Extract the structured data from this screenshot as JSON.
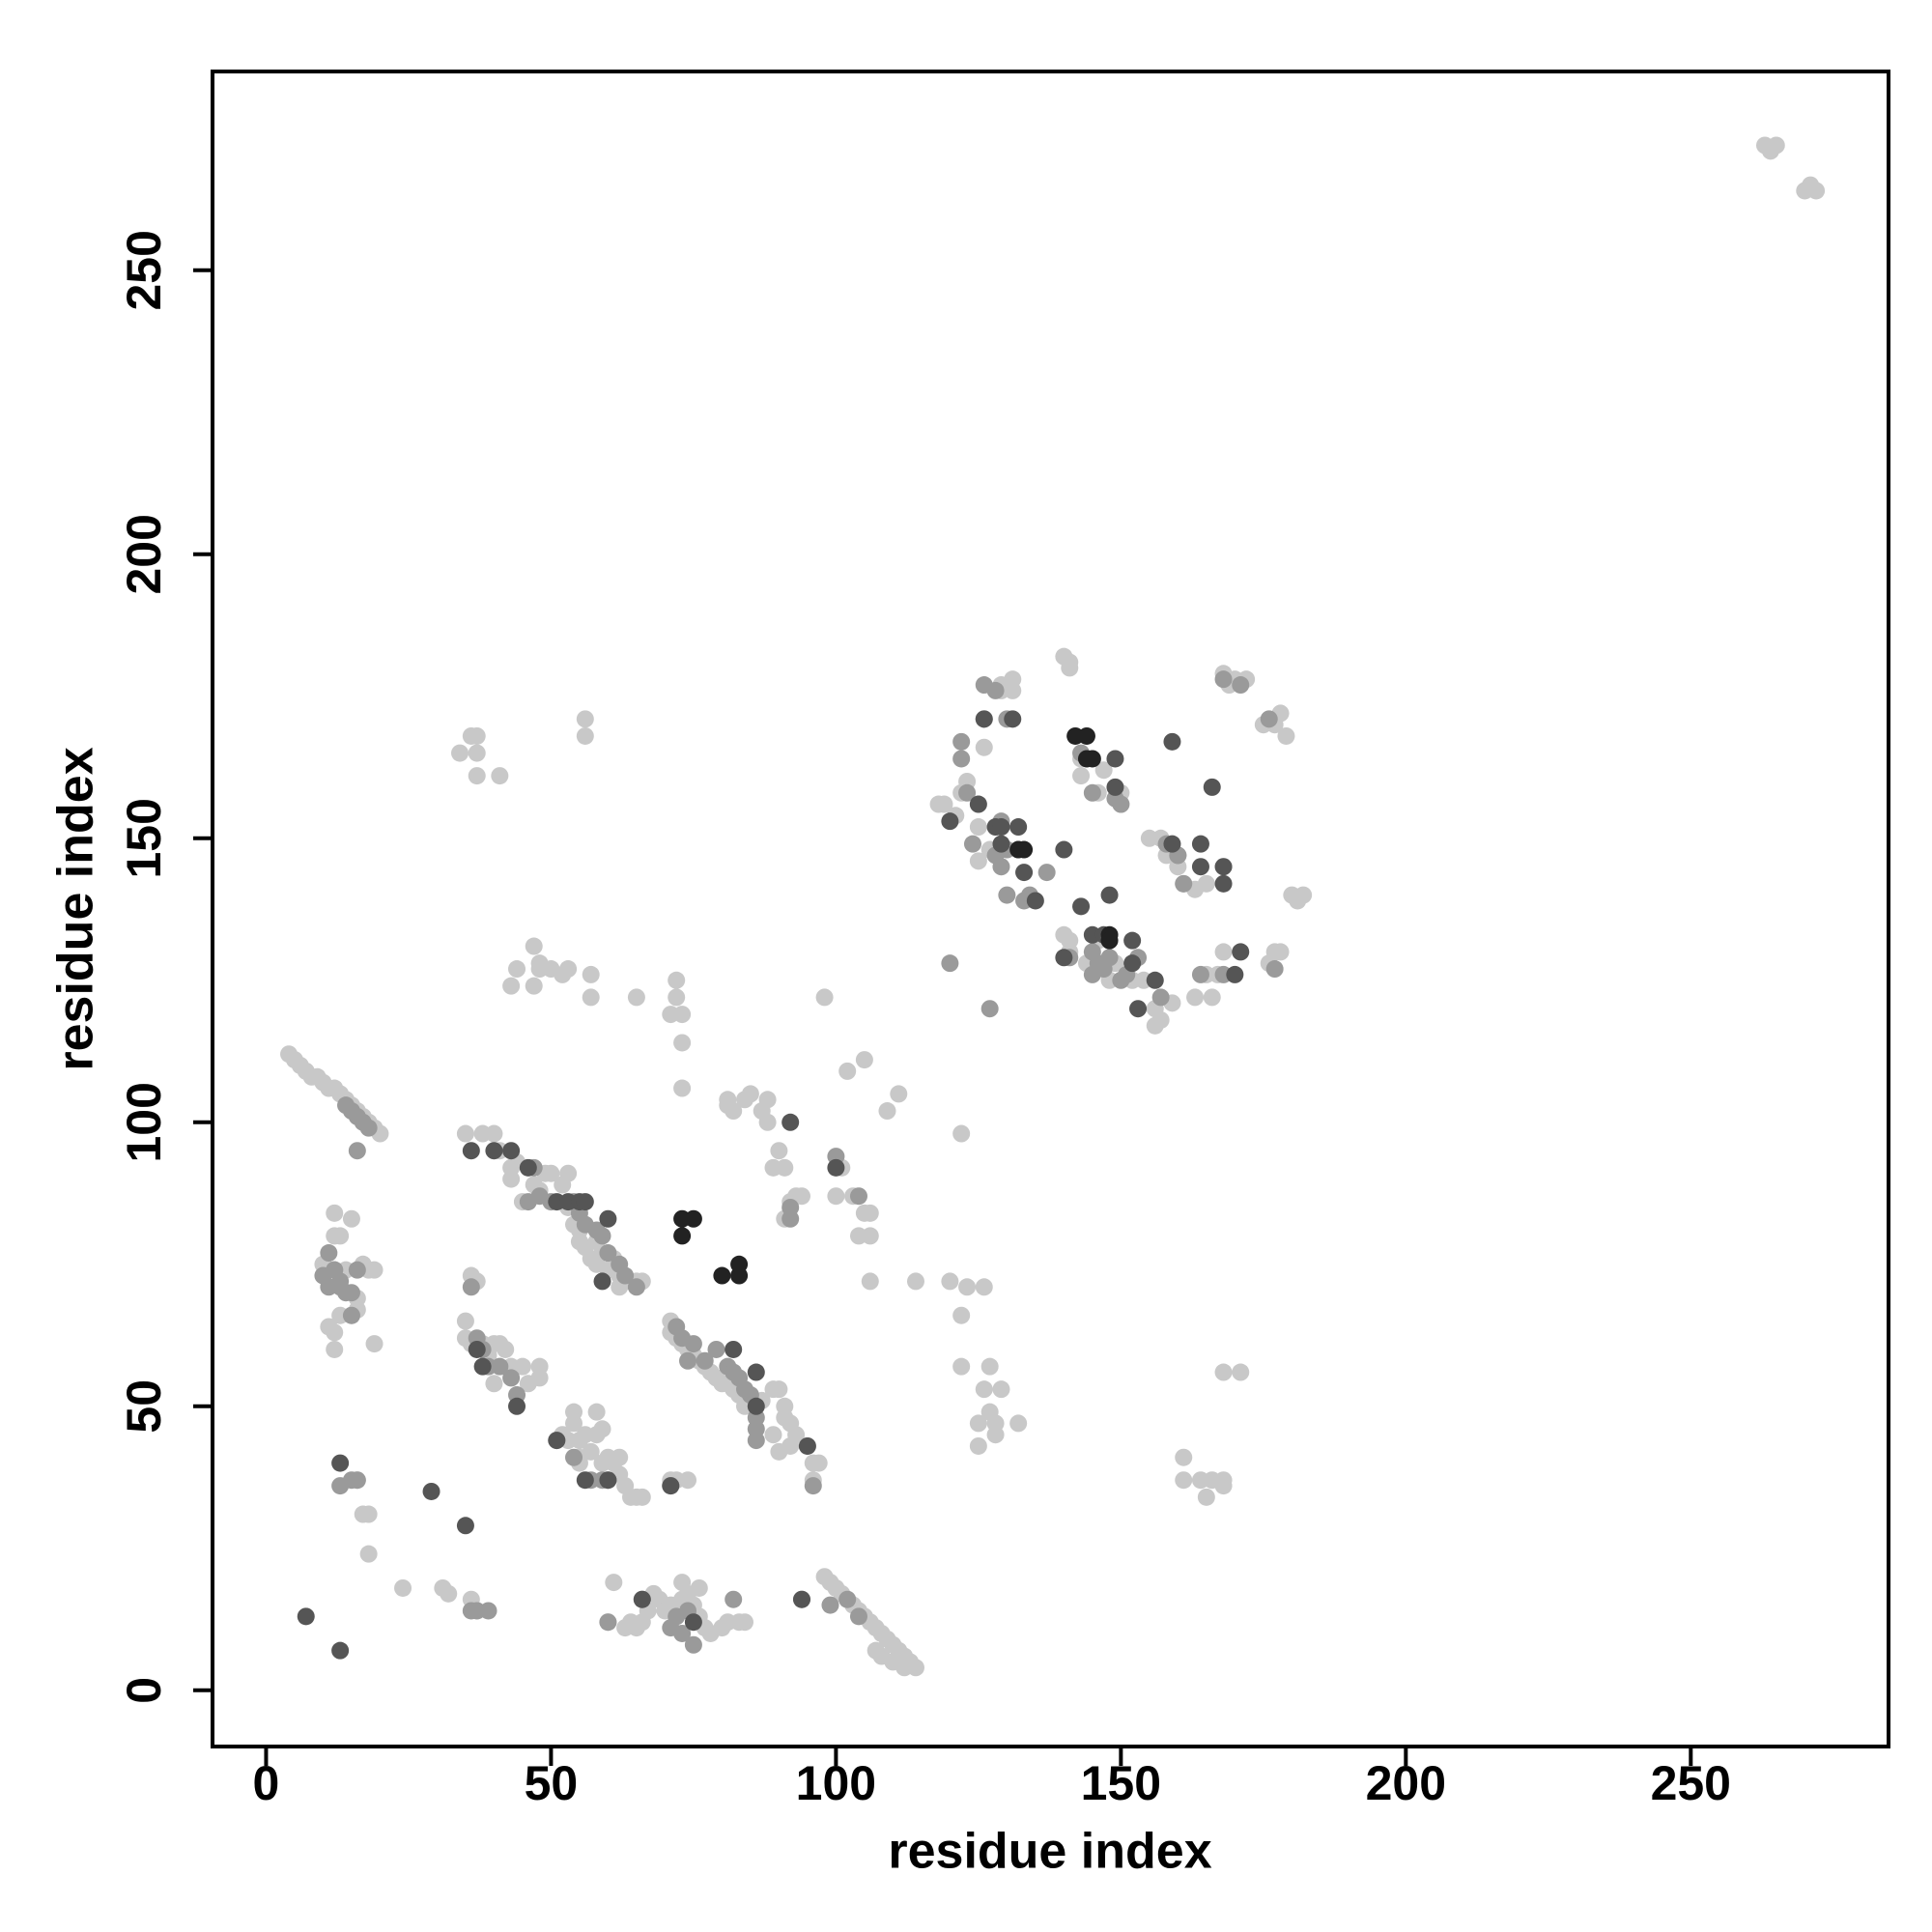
{
  "chart_data": {
    "type": "scatter",
    "xlabel": "residue index",
    "ylabel": "residue index",
    "xlim": [
      -9.4,
      284.7
    ],
    "ylim": [
      -9.9,
      285
    ],
    "xticks": [
      0,
      50,
      100,
      150,
      200,
      250
    ],
    "yticks": [
      0,
      50,
      100,
      150,
      200,
      250
    ],
    "series": [
      {
        "color": "#c8c8c8",
        "x": [
          4,
          5,
          6,
          7,
          8,
          9,
          10,
          11,
          12,
          13,
          14,
          15,
          16,
          17,
          18,
          19,
          20,
          263,
          264,
          265,
          271,
          272,
          270,
          98,
          99,
          100,
          101,
          102,
          103,
          104,
          105,
          106,
          107,
          108,
          109,
          110,
          111,
          112,
          113,
          114,
          107,
          108,
          110,
          112,
          140,
          141,
          141,
          121,
          118,
          119,
          122,
          123,
          125,
          125,
          127,
          126,
          129,
          129,
          131,
          131,
          143,
          143,
          146,
          147,
          150,
          150,
          155,
          157,
          158,
          160,
          161,
          163,
          165,
          168,
          176,
          177,
          178,
          180,
          181,
          182,
          177,
          178,
          179,
          175,
          168,
          169,
          172,
          170,
          141,
          141,
          140,
          144,
          146,
          148,
          149,
          152,
          154,
          156,
          156,
          157,
          159,
          163,
          165,
          166,
          167,
          168,
          168,
          171,
          161,
          161,
          164,
          165,
          166,
          168,
          168,
          120,
          123,
          126,
          122,
          122,
          125,
          125,
          126,
          127,
          127,
          129,
          128,
          128,
          132,
          114,
          106,
          111,
          109,
          105,
          102,
          103,
          104,
          105,
          106,
          106,
          101,
          100,
          98,
          122,
          94,
          93,
          92,
          91,
          89,
          90,
          91,
          88,
          88,
          87,
          85,
          84,
          82,
          81,
          81,
          72,
          72,
          73,
          71,
          73,
          73,
          65,
          57,
          57,
          53,
          52,
          47,
          48,
          47,
          48,
          50,
          43,
          44,
          34,
          36,
          37,
          37,
          37,
          41,
          56,
          56,
          35,
          38,
          40,
          41,
          43,
          44,
          43,
          45,
          47,
          48,
          49,
          50,
          52,
          53,
          53,
          54,
          55,
          55,
          56,
          57,
          58,
          58,
          59,
          61,
          61,
          62,
          63,
          64,
          65,
          66,
          62,
          60,
          71,
          71,
          72,
          73,
          74,
          75,
          76,
          77,
          78,
          79,
          80,
          81,
          82,
          83,
          84,
          89,
          90,
          91,
          91,
          92,
          93,
          95,
          96,
          97,
          92,
          89,
          90,
          87,
          96,
          35,
          35,
          36,
          38,
          39,
          40,
          41,
          42,
          43,
          45,
          46,
          48,
          48,
          40,
          52,
          53,
          54,
          54,
          55,
          55,
          56,
          57,
          58,
          58,
          59,
          59,
          60,
          61,
          62,
          62,
          63,
          64,
          65,
          66,
          61,
          60,
          63,
          64,
          65,
          66,
          67,
          68,
          69,
          70,
          71,
          72,
          73,
          73,
          74,
          75,
          76,
          76,
          77,
          78,
          80,
          81,
          83,
          84,
          71,
          72,
          74,
          55,
          31,
          32,
          24,
          18,
          17,
          16,
          18,
          19,
          15,
          12,
          12,
          13,
          10,
          14,
          17,
          18,
          19,
          16,
          12,
          12,
          11,
          13,
          15,
          16,
          36,
          37,
          36,
          37
        ],
        "y": [
          112,
          111,
          110,
          109,
          108,
          108,
          107,
          106,
          106,
          105,
          104,
          103,
          102,
          101,
          100,
          99,
          98,
          272,
          271,
          272,
          265,
          264,
          264,
          20,
          19,
          18,
          17,
          16,
          15,
          14,
          13,
          12,
          11,
          10,
          9,
          8,
          7,
          6,
          5,
          4,
          7,
          6,
          5,
          4,
          182,
          181,
          180,
          154,
          156,
          156,
          158,
          160,
          152,
          146,
          148,
          166,
          177,
          176,
          178,
          176,
          164,
          161,
          158,
          162,
          158,
          156,
          150,
          150,
          147,
          145,
          142,
          141,
          142,
          145,
          128,
          130,
          130,
          140,
          139,
          140,
          170,
          172,
          168,
          170,
          179,
          177,
          178,
          178,
          130,
          132,
          133,
          128,
          132,
          125,
          128,
          125,
          125,
          120,
          117,
          118,
          121,
          122,
          126,
          122,
          126,
          130,
          56,
          56,
          41,
          37,
          37,
          34,
          37,
          37,
          36,
          72,
          71,
          71,
          66,
          57,
          47,
          43,
          53,
          57,
          49,
          53,
          47,
          45,
          47,
          72,
          72,
          105,
          102,
          111,
          109,
          87,
          80,
          84,
          84,
          80,
          92,
          87,
          122,
          98,
          87,
          87,
          86,
          83,
          92,
          95,
          92,
          100,
          104,
          102,
          105,
          104,
          102,
          104,
          103,
          125,
          122,
          119,
          119,
          114,
          106,
          122,
          126,
          122,
          127,
          126,
          124,
          128,
          131,
          127,
          127,
          124,
          127,
          165,
          168,
          168,
          165,
          161,
          161,
          171,
          168,
          98,
          98,
          98,
          95,
          92,
          93,
          90,
          86,
          89,
          88,
          91,
          91,
          89,
          91,
          85,
          82,
          79,
          81,
          78,
          76,
          75,
          79,
          77,
          76,
          74,
          73,
          72,
          72,
          72,
          72,
          71,
          74,
          65,
          63,
          62,
          61,
          60,
          59,
          58,
          57,
          56,
          55,
          54,
          54,
          53,
          52,
          50,
          53,
          53,
          50,
          48,
          47,
          45,
          43,
          40,
          40,
          43,
          45,
          42,
          51,
          37,
          65,
          62,
          61,
          61,
          59,
          61,
          61,
          60,
          57,
          57,
          54,
          55,
          57,
          54,
          45,
          44,
          47,
          49,
          44,
          41,
          45,
          42,
          45,
          49,
          46,
          40,
          41,
          40,
          41,
          38,
          36,
          34,
          34,
          34,
          19,
          12,
          11,
          12,
          11,
          12,
          14,
          17,
          16,
          14,
          15,
          13,
          16,
          19,
          17,
          15,
          18,
          13,
          11,
          10,
          11,
          12,
          12,
          12,
          37,
          37,
          37,
          40,
          18,
          17,
          18,
          31,
          31,
          37,
          24,
          61,
          83,
          84,
          80,
          80,
          75,
          74,
          75,
          74,
          74,
          69,
          63,
          60,
          64,
          66,
          66,
          67,
          73,
          72,
          16,
          14
        ]
      },
      {
        "color": "#9a9a9a",
        "x": [
          15,
          16,
          17,
          18,
          14,
          16,
          12,
          10,
          11,
          13,
          14,
          15,
          16,
          11,
          13,
          13,
          15,
          12,
          36,
          37,
          38,
          39,
          41,
          43,
          44,
          46,
          47,
          48,
          50,
          54,
          55,
          56,
          58,
          59,
          60,
          62,
          63,
          65,
          72,
          73,
          74,
          75,
          77,
          79,
          81,
          82,
          83,
          84,
          85,
          86,
          86,
          86,
          92,
          92,
          96,
          104,
          100,
          51,
          54,
          57,
          60,
          71,
          60,
          59,
          39,
          37,
          36,
          66,
          71,
          72,
          73,
          74,
          75,
          82,
          94,
          99,
          102,
          104,
          120,
          127,
          124,
          126,
          128,
          129,
          130,
          129,
          130,
          132,
          133,
          134,
          137,
          141,
          145,
          145,
          146,
          147,
          144,
          145,
          148,
          150,
          151,
          153,
          157,
          158,
          160,
          161,
          168,
          171,
          176,
          177,
          160,
          122,
          123,
          128,
          130,
          143,
          149,
          164,
          168,
          122,
          126,
          150,
          16,
          15
        ],
        "y": [
          102,
          101,
          100,
          99,
          103,
          95,
          74,
          73,
          71,
          71,
          70,
          70,
          74,
          77,
          72,
          36,
          37,
          74,
          71,
          62,
          60,
          57,
          57,
          55,
          52,
          86,
          92,
          87,
          86,
          86,
          84,
          82,
          81,
          80,
          77,
          75,
          73,
          71,
          64,
          62,
          58,
          61,
          58,
          60,
          57,
          56,
          55,
          53,
          52,
          44,
          46,
          48,
          83,
          85,
          36,
          87,
          94,
          44,
          41,
          37,
          37,
          36,
          12,
          37,
          14,
          14,
          14,
          16,
          11,
          13,
          10,
          14,
          8,
          16,
          16,
          15,
          16,
          13,
          128,
          120,
          149,
          171,
          147,
          145,
          140,
          153,
          148,
          148,
          139,
          140,
          144,
          129,
          130,
          126,
          128,
          127,
          164,
          158,
          129,
          125,
          126,
          129,
          122,
          149,
          147,
          142,
          178,
          177,
          171,
          127,
          147,
          164,
          158,
          176,
          171,
          165,
          157,
          126,
          126,
          167,
          177,
          156,
          37,
          66
        ]
      },
      {
        "color": "#555555",
        "x": [
          7,
          13,
          13,
          29,
          35,
          36,
          37,
          38,
          40,
          43,
          44,
          46,
          51,
          51,
          53,
          55,
          56,
          60,
          66,
          71,
          75,
          82,
          86,
          86,
          92,
          94,
          95,
          100,
          120,
          125,
          126,
          128,
          129,
          129,
          131,
          132,
          133,
          135,
          140,
          143,
          145,
          148,
          149,
          149,
          152,
          153,
          156,
          159,
          159,
          164,
          164,
          166,
          168,
          168,
          170,
          171,
          152,
          147,
          140,
          56,
          60,
          59
        ],
        "y": [
          13,
          7,
          40,
          35,
          29,
          95,
          60,
          57,
          95,
          95,
          50,
          92,
          44,
          86,
          86,
          86,
          86,
          83,
          16,
          36,
          12,
          60,
          56,
          50,
          100,
          16,
          43,
          92,
          153,
          156,
          171,
          152,
          152,
          149,
          171,
          152,
          144,
          139,
          148,
          138,
          133,
          140,
          159,
          164,
          132,
          120,
          125,
          149,
          167,
          149,
          145,
          159,
          145,
          142,
          126,
          130,
          128,
          133,
          129,
          37,
          37,
          72
        ]
      },
      {
        "color": "#222222",
        "x": [
          73,
          73,
          75,
          80,
          83,
          83,
          132,
          133,
          148,
          148,
          144,
          142,
          144,
          145
        ],
        "y": [
          83,
          80,
          83,
          73,
          73,
          75,
          148,
          148,
          133,
          132,
          168,
          168,
          164,
          164
        ]
      }
    ]
  }
}
